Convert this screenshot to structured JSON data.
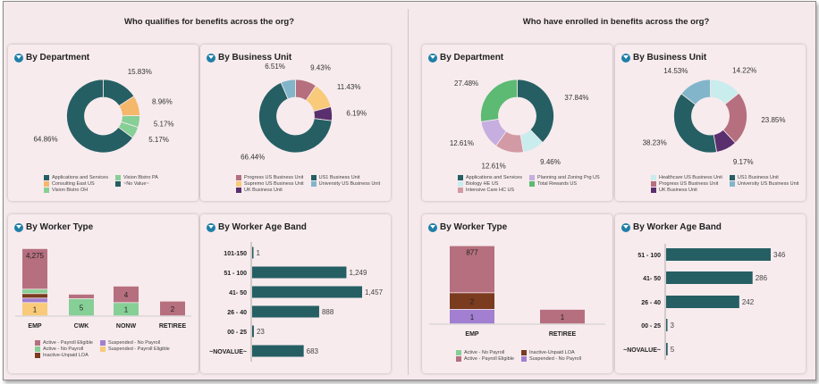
{
  "sections": {
    "left_title": "Who qualifies for benefits across the org?",
    "right_title": "Who have enrolled in benefits across the org?"
  },
  "colors": {
    "teal": "#255f63",
    "orange": "#f5b76b",
    "green": "#86cf96",
    "mauve": "#b66f7e",
    "yellow": "#f8ca79",
    "purple": "#5a2f6d",
    "lightblue": "#82b5c9",
    "lightcyan": "#c9ecec",
    "pink": "#d29aa5",
    "lavender": "#c6aee0",
    "brightgreen": "#5cba72",
    "brown": "#7a3b1f",
    "violet": "#a27fd0",
    "accent": "#1f7fa8"
  },
  "chart_data": [
    {
      "type": "pie",
      "title": "By Department",
      "donut": true,
      "slices": [
        {
          "label": "Applications and Services",
          "value": 15.83,
          "text": "15.83%",
          "color": "#255f63"
        },
        {
          "label": "Consulting East US",
          "value": 8.96,
          "text": "8.96%",
          "color": "#f5b76b"
        },
        {
          "label": "Vision Bistro OH",
          "value": 5.17,
          "text": "5.17%",
          "color": "#86cf96"
        },
        {
          "label": "Vision Bistro PA",
          "value": 5.17,
          "text": "5.17%",
          "color": "#86cf96"
        },
        {
          "label": "~No Value~",
          "value": 64.86,
          "text": "64.86%",
          "color": "#255f63"
        }
      ],
      "legend": [
        {
          "label": "Applications and Services",
          "color": "#255f63"
        },
        {
          "label": "Vision Bistro PA",
          "color": "#86cf96"
        },
        {
          "label": "Consulting East US",
          "color": "#f5b76b"
        },
        {
          "label": "~No Value~",
          "color": "#255f63"
        },
        {
          "label": "Vision Bistro OH",
          "color": "#86cf96"
        }
      ]
    },
    {
      "type": "pie",
      "title": "By Business Unit",
      "donut": true,
      "slices": [
        {
          "label": "Progress US Business Unit",
          "value": 9.43,
          "text": "9.43%",
          "color": "#b66f7e"
        },
        {
          "label": "Supremo US Business Unit",
          "value": 11.43,
          "text": "11.43%",
          "color": "#f8ca79"
        },
        {
          "label": "UK Business Unit",
          "value": 6.19,
          "text": "6.19%",
          "color": "#5a2f6d"
        },
        {
          "label": "US1 Business Unit",
          "value": 66.44,
          "text": "66.44%",
          "color": "#255f63"
        },
        {
          "label": "University US Business Unit",
          "value": 6.51,
          "text": "6.51%",
          "color": "#82b5c9"
        }
      ],
      "legend": [
        {
          "label": "Progress US Business Unit",
          "color": "#b66f7e"
        },
        {
          "label": "US1 Business Unit",
          "color": "#255f63"
        },
        {
          "label": "Supremo US Business Unit",
          "color": "#f8ca79"
        },
        {
          "label": "University US Business Unit",
          "color": "#82b5c9"
        },
        {
          "label": "UK Business Unit",
          "color": "#5a2f6d"
        }
      ]
    },
    {
      "type": "pie",
      "title": "By Department",
      "donut": true,
      "slices": [
        {
          "label": "Applications and Services",
          "value": 37.84,
          "text": "37.84%",
          "color": "#255f63"
        },
        {
          "label": "Biology HE US",
          "value": 9.46,
          "text": "9.46%",
          "color": "#c9ecec"
        },
        {
          "label": "Intensive Care HC US",
          "value": 12.61,
          "text": "12.61%",
          "color": "#d29aa5"
        },
        {
          "label": "Planning and Zoning Prg US",
          "value": 12.61,
          "text": "12.61%",
          "color": "#c6aee0"
        },
        {
          "label": "Total Rewards US",
          "value": 27.48,
          "text": "27.48%",
          "color": "#5cba72"
        }
      ],
      "legend": [
        {
          "label": "Applications and Services",
          "color": "#255f63"
        },
        {
          "label": "Planning and Zoning Prg US",
          "color": "#c6aee0"
        },
        {
          "label": "Biology HE US",
          "color": "#c9ecec"
        },
        {
          "label": "Total Rewards US",
          "color": "#5cba72"
        },
        {
          "label": "Intensive Care HC US",
          "color": "#d29aa5"
        }
      ]
    },
    {
      "type": "pie",
      "title": "By Business Unit",
      "donut": true,
      "slices": [
        {
          "label": "Healthcare US Business Unit",
          "value": 14.22,
          "text": "14.22%",
          "color": "#c9ecec"
        },
        {
          "label": "Progress US Business Unit",
          "value": 23.85,
          "text": "23.85%",
          "color": "#b66f7e"
        },
        {
          "label": "UK Business Unit",
          "value": 9.17,
          "text": "9.17%",
          "color": "#5a2f6d"
        },
        {
          "label": "US1 Business Unit",
          "value": 38.23,
          "text": "38.23%",
          "color": "#255f63"
        },
        {
          "label": "University US Business Unit",
          "value": 14.53,
          "text": "14.53%",
          "color": "#82b5c9"
        }
      ],
      "legend": [
        {
          "label": "Healthcare US Business Unit",
          "color": "#c9ecec"
        },
        {
          "label": "US1 Business Unit",
          "color": "#255f63"
        },
        {
          "label": "Progress US Business Unit",
          "color": "#b66f7e"
        },
        {
          "label": "University US Business Unit",
          "color": "#82b5c9"
        },
        {
          "label": "UK Business Unit",
          "color": "#5a2f6d"
        }
      ]
    },
    {
      "type": "bar",
      "stacked": true,
      "title": "By Worker Type",
      "categories": [
        "EMP",
        "CWK",
        "NONW",
        "RETIREE"
      ],
      "series": [
        {
          "name": "Suspended - Payroll Eligible",
          "color": "#f8ca79",
          "values": [
            1,
            null,
            null,
            null
          ]
        },
        {
          "name": "Suspended - No Payroll",
          "color": "#a27fd0",
          "values": [
            "unlabeled",
            null,
            null,
            null
          ]
        },
        {
          "name": "Inactive-Unpaid LOA",
          "color": "#7a3b1f",
          "values": [
            "unlabeled",
            null,
            null,
            null
          ]
        },
        {
          "name": "Active - No Payroll",
          "color": "#86cf96",
          "values": [
            "unlabeled",
            5,
            1,
            null
          ]
        },
        {
          "name": "Active - Payroll Eligible",
          "color": "#b66f7e",
          "values": [
            4275,
            "unlabeled",
            4,
            2
          ]
        }
      ],
      "data_labels": [
        "4,275",
        "1",
        "5",
        "4",
        "1",
        "2"
      ],
      "legend": [
        {
          "label": "Active - Payroll Eligible",
          "color": "#b66f7e"
        },
        {
          "label": "Suspended - No Payroll",
          "color": "#a27fd0"
        },
        {
          "label": "Active - No Payroll",
          "color": "#86cf96"
        },
        {
          "label": "Suspended - Payroll Eligible",
          "color": "#f8ca79"
        },
        {
          "label": "Inactive-Unpaid LOA",
          "color": "#7a3b1f"
        }
      ]
    },
    {
      "type": "bar",
      "orientation": "horizontal",
      "title": "By Worker Age Band",
      "categories": [
        "101-150",
        "51 - 100",
        "41- 50",
        "26 - 40",
        "00 - 25",
        "~NOVALUE~"
      ],
      "values": [
        1,
        1249,
        1457,
        888,
        23,
        683
      ],
      "labels": [
        "1",
        "1,249",
        "1,457",
        "888",
        "23",
        "683"
      ],
      "color": "#255f63",
      "xlim": [
        0,
        1457
      ]
    },
    {
      "type": "bar",
      "stacked": true,
      "title": "By Worker Type",
      "categories": [
        "EMP",
        "RETIREE"
      ],
      "series": [
        {
          "name": "Suspended - No Payroll",
          "color": "#a27fd0",
          "values": [
            1,
            null
          ]
        },
        {
          "name": "Inactive-Unpaid LOA",
          "color": "#7a3b1f",
          "values": [
            2,
            null
          ]
        },
        {
          "name": "Active - Payroll Eligible",
          "color": "#b66f7e",
          "values": [
            877,
            1
          ]
        }
      ],
      "legend": [
        {
          "label": "Active - No Payroll",
          "color": "#86cf96"
        },
        {
          "label": "Inactive-Unpaid LOA",
          "color": "#7a3b1f"
        },
        {
          "label": "Active - Payroll Eligible",
          "color": "#b66f7e"
        },
        {
          "label": "Suspended - No Payroll",
          "color": "#a27fd0"
        }
      ]
    },
    {
      "type": "bar",
      "orientation": "horizontal",
      "title": "By Worker Age Band",
      "categories": [
        "51 - 100",
        "41- 50",
        "26 - 40",
        "00 - 25",
        "~NOVALUE~"
      ],
      "values": [
        346,
        286,
        242,
        3,
        5
      ],
      "labels": [
        "346",
        "286",
        "242",
        "3",
        "5"
      ],
      "color": "#255f63",
      "xlim": [
        0,
        346
      ]
    }
  ]
}
